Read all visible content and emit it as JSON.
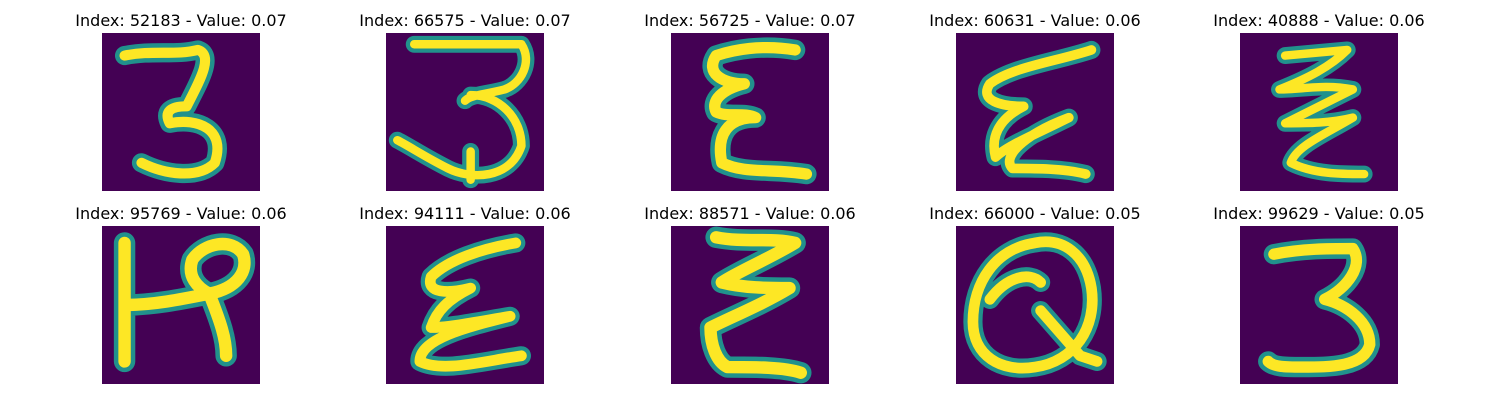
{
  "colormap": "viridis",
  "background_color": "#440154",
  "stroke_color": "#fde725",
  "panels": [
    {
      "title": "Index: 52183 - Value: 0.07",
      "glyph": "3"
    },
    {
      "title": "Index: 66575 - Value: 0.07",
      "glyph": "3"
    },
    {
      "title": "Index: 56725 - Value: 0.07",
      "glyph": "E"
    },
    {
      "title": "Index: 60631 - Value: 0.06",
      "glyph": "E"
    },
    {
      "title": "Index: 40888 - Value: 0.06",
      "glyph": "E"
    },
    {
      "title": "Index: 95769 - Value: 0.06",
      "glyph": "H"
    },
    {
      "title": "Index: 94111 - Value: 0.06",
      "glyph": "E"
    },
    {
      "title": "Index: 88571 - Value: 0.06",
      "glyph": "E"
    },
    {
      "title": "Index: 66000 - Value: 0.05",
      "glyph": "Q"
    },
    {
      "title": "Index: 99629 - Value: 0.05",
      "glyph": "3"
    }
  ]
}
